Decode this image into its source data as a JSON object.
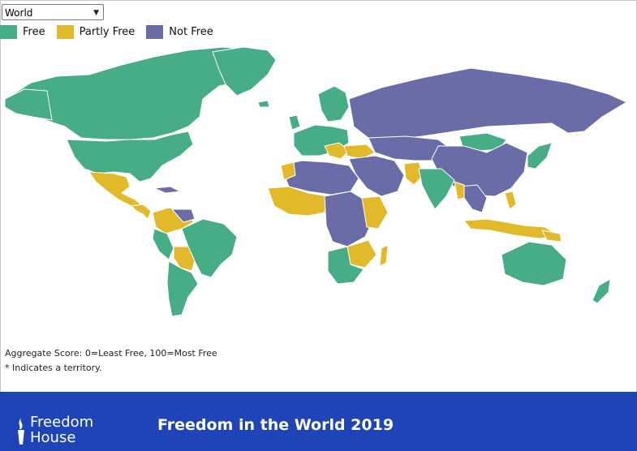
{
  "region_select": {
    "value": "World"
  },
  "legend": [
    {
      "label": "Free",
      "color": "#46ad85"
    },
    {
      "label": "Partly Free",
      "color": "#e2b928"
    },
    {
      "label": "Not Free",
      "color": "#6a6ca8"
    }
  ],
  "notes": {
    "score": "Aggregate Score: 0=Least Free, 100=Most Free",
    "territory": "* Indicates a territory."
  },
  "footer": {
    "logo_line1": "Freedom",
    "logo_line2": "House",
    "title": "Freedom in the World 2019",
    "background": "#1f44b8"
  },
  "map": {
    "ocean_color": "#ffffff",
    "border_color": "#ffffff"
  }
}
